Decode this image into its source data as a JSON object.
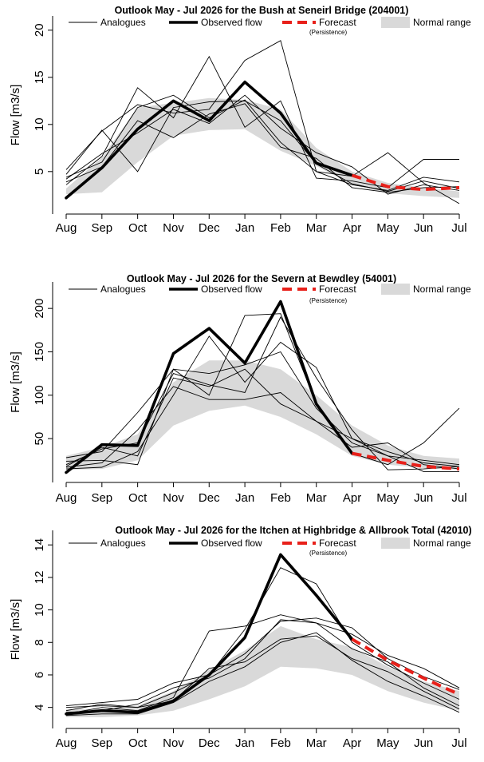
{
  "chart_data": [
    {
      "type": "line",
      "title": "Outlook May - Jul 2026 for the Bush at Seneirl Bridge (204001)",
      "ylabel": "Flow [m3/s]",
      "xlabel": "",
      "categories": [
        "Aug",
        "Sep",
        "Oct",
        "Nov",
        "Dec",
        "Jan",
        "Feb",
        "Mar",
        "Apr",
        "May",
        "Jun",
        "Jul"
      ],
      "ylim": [
        1,
        21
      ],
      "yticks": [
        5,
        10,
        15,
        20
      ],
      "grid": false,
      "legend_placement": "top",
      "legend": {
        "analogues": "Analogues",
        "observed": "Observed flow",
        "forecast": "Forecast",
        "forecast_note": "(Persistence)",
        "normal": "Normal range"
      },
      "colors": {
        "observed": "#000000",
        "analogues": "#000000",
        "forecast": "#e8201a",
        "normal": "#d9d9d9"
      },
      "normal_range": {
        "lower": [
          2.6,
          2.8,
          6.0,
          8.8,
          9.4,
          9.5,
          7.2,
          5.6,
          3.6,
          2.7,
          2.4,
          2.2
        ],
        "upper": [
          3.2,
          6.5,
          11.8,
          12.3,
          12.8,
          12.6,
          11.6,
          7.5,
          5.0,
          3.8,
          3.3,
          2.9
        ]
      },
      "observed": [
        2.2,
        5.4,
        9.5,
        12.5,
        10.4,
        14.5,
        11.2,
        5.9,
        4.6
      ],
      "forecast": {
        "start_index": 8,
        "values": [
          4.6,
          3.4,
          3.1,
          3.3
        ]
      },
      "analogues": [
        [
          5.2,
          9.3,
          12.1,
          11.2,
          11.6,
          16.8,
          18.9,
          5.0,
          4.5,
          7.0,
          3.8,
          1.6
        ],
        [
          3.6,
          6.6,
          13.9,
          10.7,
          17.2,
          9.7,
          12.5,
          4.3,
          4.0,
          3.3,
          6.3,
          6.3
        ],
        [
          4.4,
          6.0,
          11.8,
          13.1,
          10.7,
          12.6,
          8.1,
          5.0,
          3.6,
          3.0,
          4.4,
          3.9
        ],
        [
          3.9,
          5.5,
          10.4,
          8.6,
          11.1,
          12.2,
          7.6,
          6.4,
          3.3,
          2.8,
          3.3,
          3.4
        ],
        [
          4.2,
          6.9,
          9.1,
          11.6,
          10.1,
          13.1,
          9.6,
          7.0,
          5.5,
          2.6,
          3.6,
          3.0
        ],
        [
          4.7,
          9.4,
          5.0,
          11.8,
          12.4,
          12.5,
          10.4,
          5.8,
          3.7,
          2.9,
          4.0,
          3.2
        ]
      ]
    },
    {
      "type": "line",
      "title": "Outlook May - Jul 2026 for the Severn at Bewdley (54001)",
      "ylabel": "Flow [m3/s]",
      "xlabel": "",
      "categories": [
        "Aug",
        "Sep",
        "Oct",
        "Nov",
        "Dec",
        "Jan",
        "Feb",
        "Mar",
        "Apr",
        "May",
        "Jun",
        "Jul"
      ],
      "ylim": [
        5,
        225
      ],
      "yticks": [
        50,
        100,
        150,
        200
      ],
      "grid": false,
      "legend_placement": "top",
      "legend": {
        "analogues": "Analogues",
        "observed": "Observed flow",
        "forecast": "Forecast",
        "forecast_note": "(Persistence)",
        "normal": "Normal range"
      },
      "colors": {
        "observed": "#000000",
        "analogues": "#000000",
        "forecast": "#e8201a",
        "normal": "#d9d9d9"
      },
      "normal_range": {
        "lower": [
          14,
          15,
          25,
          65,
          82,
          88,
          75,
          55,
          30,
          20,
          16,
          14
        ],
        "upper": [
          30,
          40,
          55,
          115,
          140,
          140,
          130,
          100,
          65,
          42,
          30,
          27
        ]
      },
      "observed": [
        11,
        43,
        42,
        148,
        177,
        137,
        208,
        90,
        33
      ],
      "forecast": {
        "start_index": 8,
        "values": [
          33,
          25,
          18,
          15
        ]
      },
      "analogues": [
        [
          28,
          35,
          80,
          130,
          100,
          192,
          194,
          90,
          33,
          20,
          45,
          85
        ],
        [
          20,
          38,
          45,
          125,
          112,
          103,
          190,
          120,
          60,
          14,
          15,
          18
        ],
        [
          17,
          22,
          60,
          110,
          95,
          95,
          103,
          70,
          40,
          45,
          20,
          15
        ],
        [
          15,
          17,
          35,
          100,
          168,
          115,
          161,
          132,
          50,
          30,
          25,
          20
        ],
        [
          24,
          25,
          20,
          130,
          125,
          135,
          150,
          85,
          45,
          30,
          12,
          12
        ],
        [
          18,
          40,
          30,
          120,
          110,
          130,
          90,
          70,
          50,
          35,
          22,
          18
        ]
      ]
    },
    {
      "type": "line",
      "title": "Outlook May - Jul 2026 for the Itchen at Highbridge & Allbrook Total (42010)",
      "ylabel": "Flow [m3/s]",
      "xlabel": "",
      "categories": [
        "Aug",
        "Sep",
        "Oct",
        "Nov",
        "Dec",
        "Jan",
        "Feb",
        "Mar",
        "Apr",
        "May",
        "Jun",
        "Jul"
      ],
      "ylim": [
        3,
        14.6
      ],
      "yticks": [
        4,
        6,
        8,
        10,
        12,
        14
      ],
      "grid": false,
      "legend_placement": "top",
      "legend": {
        "analogues": "Analogues",
        "observed": "Observed flow",
        "forecast": "Forecast",
        "forecast_note": "(Persistence)",
        "normal": "Normal range"
      },
      "colors": {
        "observed": "#000000",
        "analogues": "#000000",
        "forecast": "#e8201a",
        "normal": "#d9d9d9"
      },
      "normal_range": {
        "lower": [
          3.4,
          3.4,
          3.5,
          3.8,
          4.5,
          5.3,
          6.5,
          6.4,
          6.0,
          5.0,
          4.3,
          3.8
        ],
        "upper": [
          3.9,
          3.9,
          4.1,
          5.0,
          6.3,
          7.5,
          9.0,
          8.2,
          7.7,
          6.5,
          5.6,
          5.0
        ]
      },
      "observed": [
        3.6,
        3.8,
        3.7,
        4.4,
        6.0,
        8.3,
        13.4,
        10.9,
        8.2
      ],
      "forecast": {
        "start_index": 8,
        "values": [
          8.2,
          6.9,
          5.8,
          4.8
        ]
      },
      "analogues": [
        [
          4.1,
          4.3,
          4.5,
          5.5,
          6.0,
          8.8,
          12.6,
          11.6,
          8.0,
          6.6,
          5.5,
          4.5
        ],
        [
          3.6,
          4.0,
          3.8,
          4.6,
          8.7,
          9.0,
          9.7,
          9.2,
          8.5,
          7.2,
          6.4,
          5.2
        ],
        [
          3.7,
          3.8,
          4.2,
          5.2,
          5.8,
          7.0,
          9.4,
          9.2,
          7.6,
          6.8,
          5.2,
          4.1
        ],
        [
          4.0,
          4.1,
          4.0,
          4.4,
          6.4,
          6.8,
          8.2,
          8.4,
          7.0,
          6.2,
          5.0,
          3.9
        ],
        [
          3.5,
          3.6,
          3.6,
          4.3,
          5.6,
          6.5,
          8.0,
          8.6,
          6.9,
          5.6,
          4.7,
          3.7
        ],
        [
          3.8,
          4.2,
          4.0,
          4.9,
          6.0,
          7.3,
          9.3,
          9.5,
          8.9,
          7.0,
          5.9,
          5.1
        ]
      ]
    }
  ]
}
